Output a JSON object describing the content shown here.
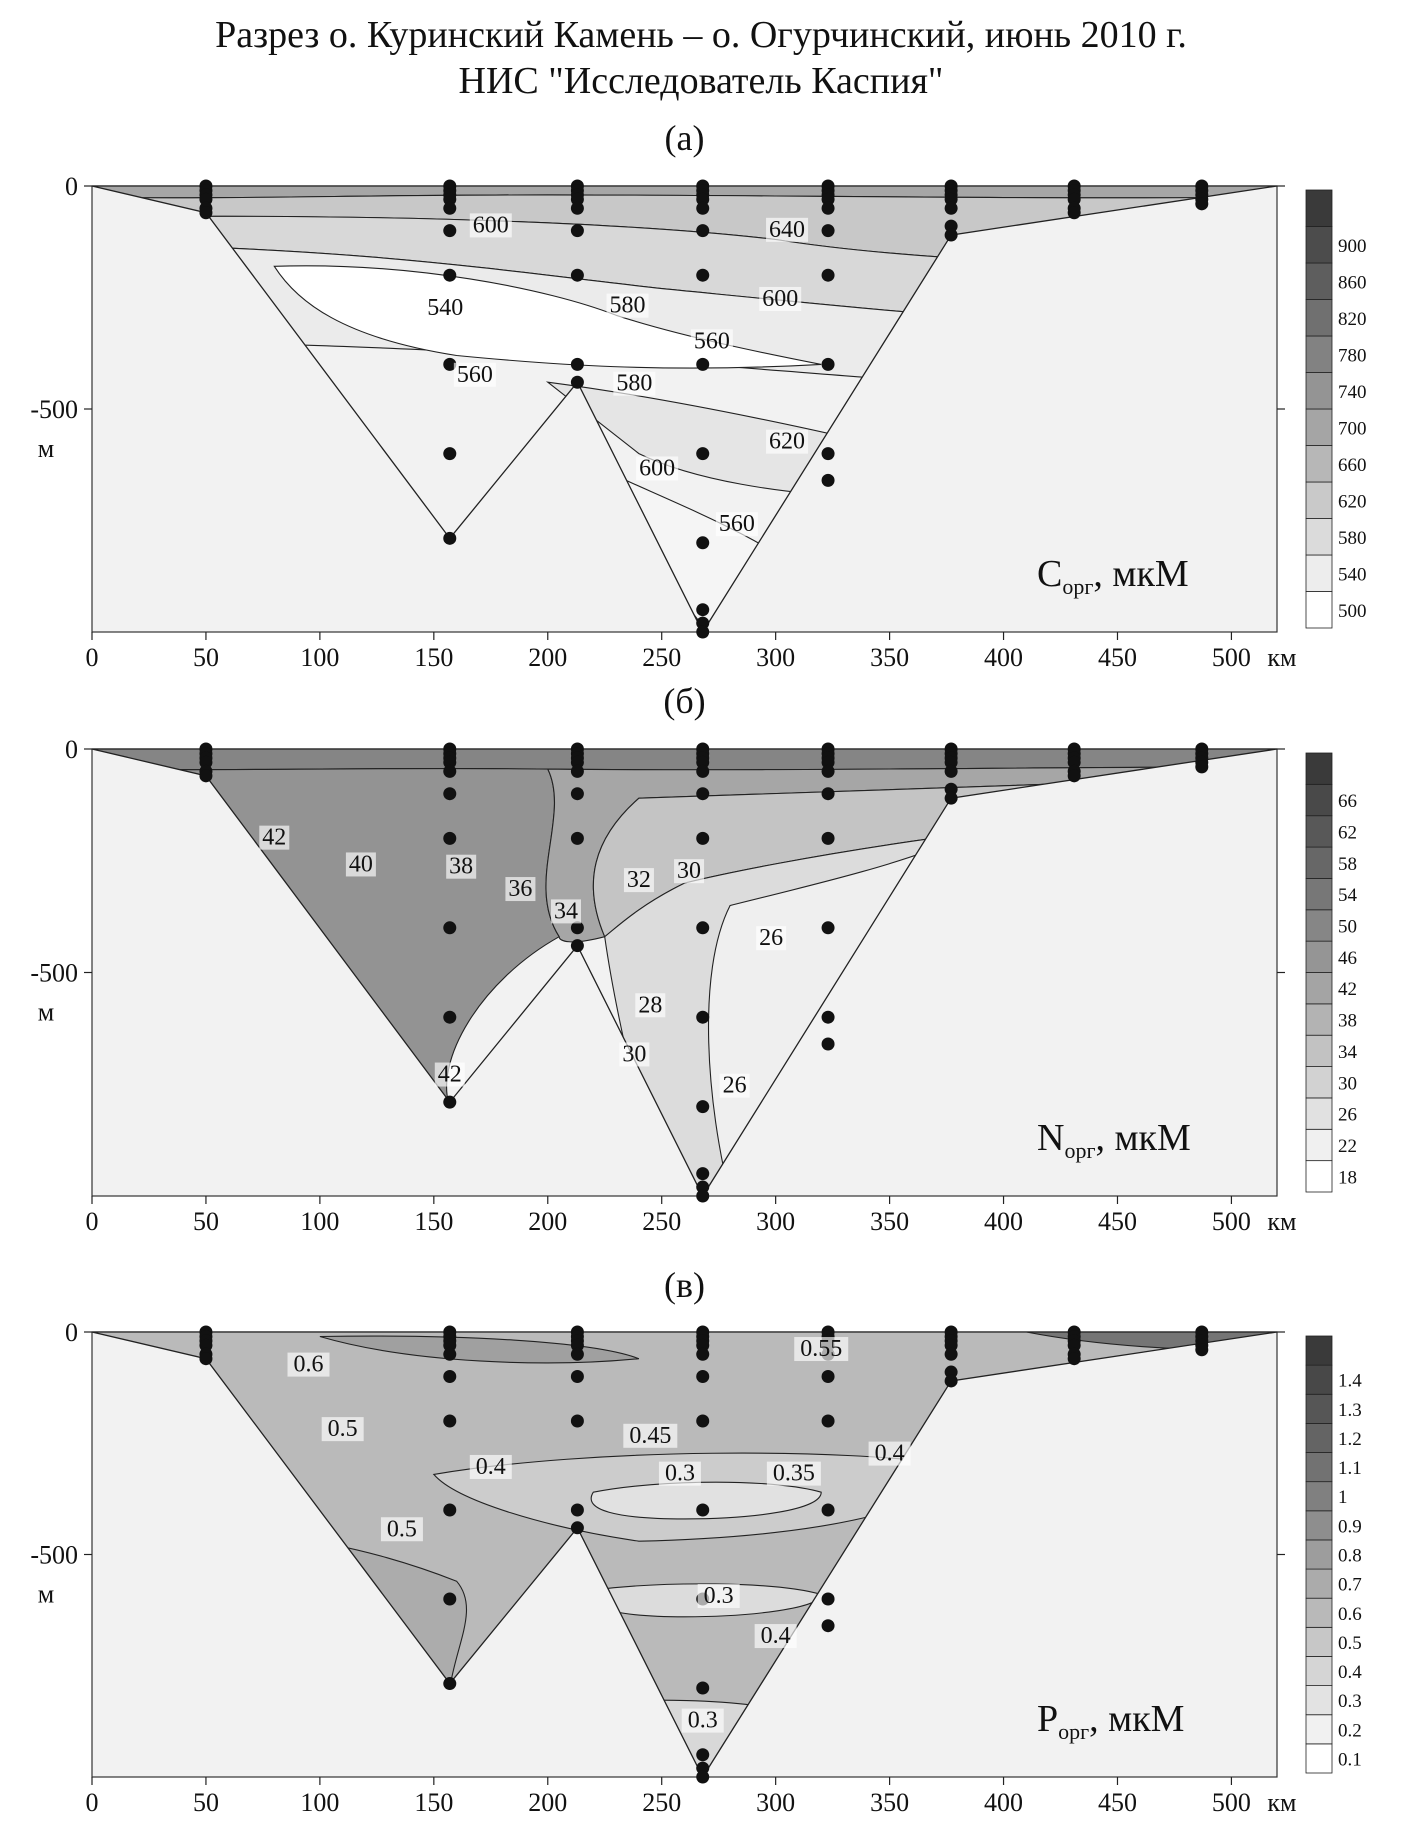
{
  "figure": {
    "title_line1": "Разрез о. Куринский Камень – о. Огурчинский, июнь 2010 г.",
    "title_line2": "НИС \"Исследователь Каспия\""
  },
  "colors": {
    "section_outer": "#f2f2f2",
    "contour_line": "#222222",
    "station": "#111111",
    "ramp_light": "#ffffff",
    "ramp_dark": "#3a3a3a"
  },
  "chart_data": [
    {
      "type": "heatmap",
      "panel_label": "(а)",
      "variable_label": "C",
      "variable_sub": "орг",
      "variable_unit": ", мкМ",
      "x_unit": "км",
      "y_unit": "м",
      "xlim": [
        0,
        520
      ],
      "ylim": [
        0,
        1000
      ],
      "x_ticks": [
        0,
        50,
        100,
        150,
        200,
        250,
        300,
        350,
        400,
        450,
        500
      ],
      "y_ticks": [
        {
          "value": 0,
          "label": "0"
        },
        {
          "value": 500,
          "label": "-500"
        }
      ],
      "colorbar": {
        "min": 500,
        "max": 940,
        "labels": [
          500,
          540,
          580,
          620,
          660,
          700,
          740,
          780,
          820,
          860,
          900
        ]
      },
      "bottom_profile": [
        [
          0,
          0
        ],
        [
          50,
          60
        ],
        [
          157,
          790
        ],
        [
          213,
          440
        ],
        [
          268,
          1000
        ],
        [
          377,
          110
        ],
        [
          520,
          0
        ]
      ],
      "stations": [
        {
          "x": 50,
          "depths": [
            0,
            10,
            20,
            30,
            50,
            60
          ]
        },
        {
          "x": 157,
          "depths": [
            0,
            10,
            20,
            30,
            50,
            100,
            200,
            400,
            600,
            790
          ]
        },
        {
          "x": 213,
          "depths": [
            0,
            10,
            20,
            30,
            50,
            100,
            200,
            400,
            440
          ]
        },
        {
          "x": 268,
          "depths": [
            0,
            10,
            20,
            30,
            50,
            100,
            200,
            400,
            600,
            800,
            950,
            980,
            1000
          ]
        },
        {
          "x": 323,
          "depths": [
            0,
            10,
            20,
            30,
            50,
            100,
            200,
            400,
            600,
            660
          ]
        },
        {
          "x": 377,
          "depths": [
            0,
            10,
            20,
            30,
            50,
            90,
            110
          ]
        },
        {
          "x": 431,
          "depths": [
            0,
            10,
            20,
            30,
            50,
            60
          ]
        },
        {
          "x": 487,
          "depths": [
            0,
            10,
            20,
            30,
            40
          ]
        }
      ],
      "contour_labels": [
        {
          "x": 175,
          "y": 95,
          "text": "600"
        },
        {
          "x": 305,
          "y": 105,
          "text": "640"
        },
        {
          "x": 155,
          "y": 280,
          "text": "540"
        },
        {
          "x": 235,
          "y": 275,
          "text": "580"
        },
        {
          "x": 302,
          "y": 260,
          "text": "600"
        },
        {
          "x": 272,
          "y": 355,
          "text": "560"
        },
        {
          "x": 168,
          "y": 430,
          "text": "560"
        },
        {
          "x": 238,
          "y": 450,
          "text": "580"
        },
        {
          "x": 305,
          "y": 580,
          "text": "620"
        },
        {
          "x": 248,
          "y": 640,
          "text": "600"
        },
        {
          "x": 283,
          "y": 765,
          "text": "560"
        }
      ]
    },
    {
      "type": "heatmap",
      "panel_label": "(б)",
      "variable_label": "N",
      "variable_sub": "орг",
      "variable_unit": ", мкМ",
      "x_unit": "км",
      "y_unit": "м",
      "xlim": [
        0,
        520
      ],
      "ylim": [
        0,
        1000
      ],
      "x_ticks": [
        0,
        50,
        100,
        150,
        200,
        250,
        300,
        350,
        400,
        450,
        500
      ],
      "y_ticks": [
        {
          "value": 0,
          "label": "0"
        },
        {
          "value": 500,
          "label": "-500"
        }
      ],
      "colorbar": {
        "min": 18,
        "max": 68,
        "labels": [
          18,
          22,
          26,
          30,
          34,
          38,
          42,
          46,
          50,
          54,
          58,
          62,
          66
        ]
      },
      "bottom_profile": [
        [
          0,
          0
        ],
        [
          50,
          60
        ],
        [
          157,
          790
        ],
        [
          213,
          440
        ],
        [
          268,
          1000
        ],
        [
          377,
          110
        ],
        [
          520,
          0
        ]
      ],
      "stations": [
        {
          "x": 50,
          "depths": [
            0,
            10,
            20,
            30,
            50,
            60
          ]
        },
        {
          "x": 157,
          "depths": [
            0,
            10,
            20,
            30,
            50,
            100,
            200,
            400,
            600,
            790
          ]
        },
        {
          "x": 213,
          "depths": [
            0,
            10,
            20,
            30,
            50,
            100,
            200,
            400,
            440
          ]
        },
        {
          "x": 268,
          "depths": [
            0,
            10,
            20,
            30,
            50,
            100,
            200,
            400,
            600,
            800,
            950,
            980,
            1000
          ]
        },
        {
          "x": 323,
          "depths": [
            0,
            10,
            20,
            30,
            50,
            100,
            200,
            400,
            600,
            660
          ]
        },
        {
          "x": 377,
          "depths": [
            0,
            10,
            20,
            30,
            50,
            90,
            110
          ]
        },
        {
          "x": 431,
          "depths": [
            0,
            10,
            20,
            30,
            50,
            60
          ]
        },
        {
          "x": 487,
          "depths": [
            0,
            10,
            20,
            30,
            40
          ]
        }
      ],
      "contour_labels": [
        {
          "x": 80,
          "y": 205,
          "text": "42"
        },
        {
          "x": 118,
          "y": 265,
          "text": "40"
        },
        {
          "x": 162,
          "y": 270,
          "text": "38"
        },
        {
          "x": 188,
          "y": 320,
          "text": "36"
        },
        {
          "x": 208,
          "y": 370,
          "text": "34"
        },
        {
          "x": 240,
          "y": 300,
          "text": "32"
        },
        {
          "x": 262,
          "y": 280,
          "text": "30"
        },
        {
          "x": 298,
          "y": 430,
          "text": "26"
        },
        {
          "x": 245,
          "y": 580,
          "text": "28"
        },
        {
          "x": 238,
          "y": 690,
          "text": "30"
        },
        {
          "x": 282,
          "y": 760,
          "text": "26"
        },
        {
          "x": 157,
          "y": 735,
          "text": "42"
        }
      ]
    },
    {
      "type": "heatmap",
      "panel_label": "(в)",
      "variable_label": "P",
      "variable_sub": "орг",
      "variable_unit": ", мкМ",
      "x_unit": "км",
      "y_unit": "м",
      "xlim": [
        0,
        520
      ],
      "ylim": [
        0,
        1000
      ],
      "x_ticks": [
        0,
        50,
        100,
        150,
        200,
        250,
        300,
        350,
        400,
        450,
        500
      ],
      "y_ticks": [
        {
          "value": 0,
          "label": "0"
        },
        {
          "value": 500,
          "label": "-500"
        }
      ],
      "colorbar": {
        "min": 0.05,
        "max": 1.45,
        "labels": [
          "0.1",
          "0.2",
          "0.3",
          "0.4",
          "0.5",
          "0.6",
          "0.7",
          "0.8",
          "0.9",
          "1",
          "1.1",
          "1.2",
          "1.3",
          "1.4"
        ]
      },
      "bottom_profile": [
        [
          0,
          0
        ],
        [
          50,
          60
        ],
        [
          157,
          790
        ],
        [
          213,
          440
        ],
        [
          268,
          1000
        ],
        [
          377,
          110
        ],
        [
          520,
          0
        ]
      ],
      "stations": [
        {
          "x": 50,
          "depths": [
            0,
            10,
            20,
            30,
            50,
            60
          ]
        },
        {
          "x": 157,
          "depths": [
            0,
            10,
            20,
            30,
            50,
            100,
            200,
            400,
            600,
            790
          ]
        },
        {
          "x": 213,
          "depths": [
            0,
            10,
            20,
            30,
            50,
            100,
            200,
            400,
            440
          ]
        },
        {
          "x": 268,
          "depths": [
            0,
            10,
            20,
            30,
            50,
            100,
            200,
            400,
            600,
            800,
            950,
            980,
            1000
          ]
        },
        {
          "x": 323,
          "depths": [
            0,
            10,
            20,
            30,
            50,
            100,
            200,
            400,
            600,
            660
          ]
        },
        {
          "x": 377,
          "depths": [
            0,
            10,
            20,
            30,
            50,
            90,
            110
          ]
        },
        {
          "x": 431,
          "depths": [
            0,
            10,
            20,
            30,
            50,
            60
          ]
        },
        {
          "x": 487,
          "depths": [
            0,
            10,
            20,
            30,
            40
          ]
        }
      ],
      "contour_labels": [
        {
          "x": 95,
          "y": 80,
          "text": "0.6"
        },
        {
          "x": 320,
          "y": 45,
          "text": "0.55"
        },
        {
          "x": 110,
          "y": 225,
          "text": "0.5"
        },
        {
          "x": 245,
          "y": 240,
          "text": "0.45"
        },
        {
          "x": 350,
          "y": 280,
          "text": "0.4"
        },
        {
          "x": 175,
          "y": 310,
          "text": "0.4"
        },
        {
          "x": 258,
          "y": 325,
          "text": "0.3"
        },
        {
          "x": 308,
          "y": 325,
          "text": "0.35"
        },
        {
          "x": 136,
          "y": 450,
          "text": "0.5"
        },
        {
          "x": 275,
          "y": 600,
          "text": "0.3"
        },
        {
          "x": 300,
          "y": 690,
          "text": "0.4"
        },
        {
          "x": 268,
          "y": 880,
          "text": "0.3"
        }
      ]
    }
  ]
}
